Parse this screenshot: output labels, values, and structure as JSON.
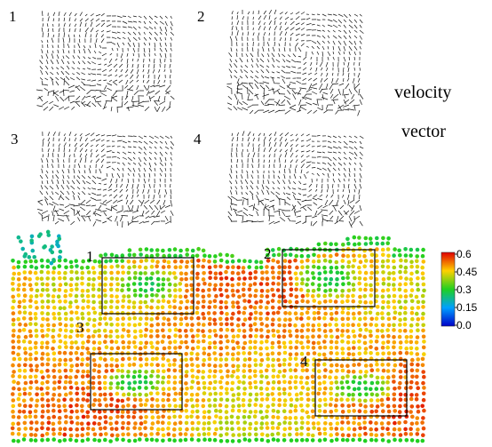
{
  "panels": [
    {
      "label": "1"
    },
    {
      "label": "2"
    },
    {
      "label": "3"
    },
    {
      "label": "4"
    }
  ],
  "side_label": {
    "line1": "velocity",
    "line2": "vector"
  },
  "field": {
    "boxes": [
      {
        "label": "1"
      },
      {
        "label": "2"
      },
      {
        "label": "3"
      },
      {
        "label": "4"
      }
    ]
  },
  "colorbar": {
    "ticks": [
      0.6,
      0.45,
      0.3,
      0.15,
      {
        "value": 0,
        "label": "0.0"
      }
    ]
  }
}
